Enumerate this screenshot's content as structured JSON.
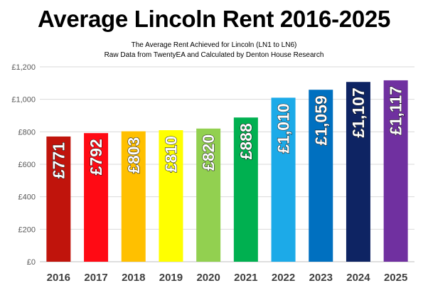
{
  "chart_data": {
    "type": "bar",
    "title": "Average Lincoln Rent 2016-2025",
    "subtitle_lines": [
      "The Average Rent Achieved for Lincoln (LN1 to LN6)",
      "Raw Data from TwentyEA and Calculated by Denton House Research"
    ],
    "xlabel": "",
    "ylabel": "",
    "categories": [
      "2016",
      "2017",
      "2018",
      "2019",
      "2020",
      "2021",
      "2022",
      "2023",
      "2024",
      "2025"
    ],
    "values": [
      771,
      792,
      803,
      810,
      820,
      888,
      1010,
      1059,
      1107,
      1117
    ],
    "data_labels": [
      "£771",
      "£792",
      "£803",
      "£810",
      "£820",
      "£888",
      "£1,010",
      "£1,059",
      "£1,107",
      "£1,117"
    ],
    "bar_colors": [
      "#c0140c",
      "#ff0a14",
      "#ffc000",
      "#ffff00",
      "#92d050",
      "#00b050",
      "#1caae8",
      "#0070c0",
      "#0e2463",
      "#7030a0"
    ],
    "ylim": [
      0,
      1200
    ],
    "yticks": [
      0,
      200,
      400,
      600,
      800,
      1000,
      1200
    ],
    "ytick_labels": [
      "£0",
      "£200",
      "£400",
      "£600",
      "£800",
      "£1,000",
      "£1,200"
    ],
    "grid": true,
    "legend": "none"
  }
}
